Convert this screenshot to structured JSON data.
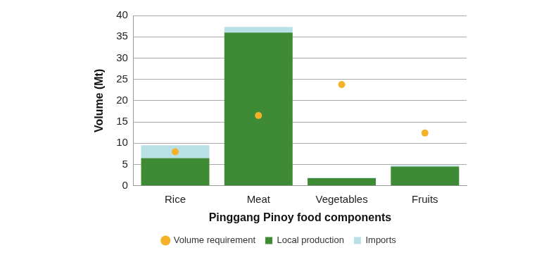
{
  "chart_data": {
    "type": "bar",
    "x_label": "Pinggang Pinoy food components",
    "y_label": "Volume (Mt)",
    "categories": [
      "Rice",
      "Meat",
      "Vegetables",
      "Fruits"
    ],
    "series": [
      {
        "name": "Local production",
        "type": "bar",
        "color": "#3f8a34",
        "values": [
          6.5,
          36,
          1.8,
          4.5
        ]
      },
      {
        "name": "Imports",
        "type": "bar",
        "color": "#b9e0e6",
        "values": [
          3,
          1.3,
          0.1,
          0.3
        ]
      },
      {
        "name": "Volume requirement",
        "type": "scatter",
        "marker": "circle",
        "color": "#f5b229",
        "values": [
          8,
          16.5,
          23.8,
          12.4
        ]
      }
    ],
    "stacked": true,
    "ylim": [
      0,
      40
    ],
    "yticks": [
      0,
      5,
      10,
      15,
      20,
      25,
      30,
      35,
      40
    ],
    "grid": true,
    "legend": "bottom"
  }
}
